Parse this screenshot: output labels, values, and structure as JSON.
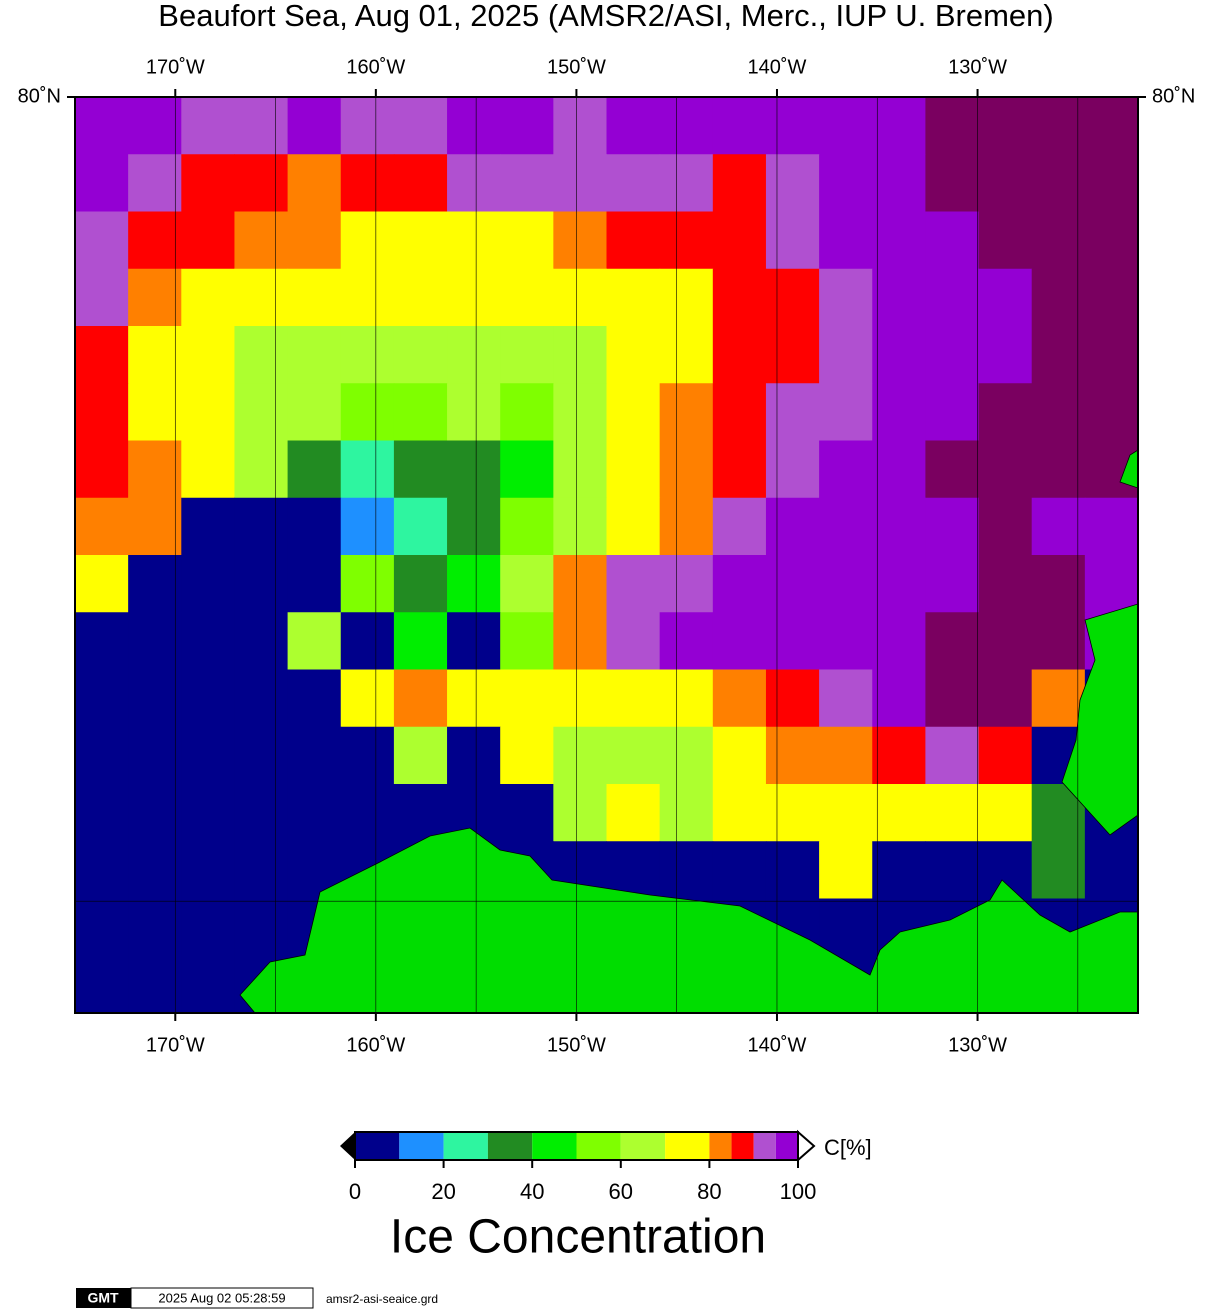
{
  "chart_data": {
    "type": "heatmap",
    "title": "Beaufort Sea, Aug 01, 2025 (AMSR2/ASI, Merc., IUP U. Bremen)",
    "xlim": [
      -175,
      -122
    ],
    "ylim": [
      68,
      80
    ],
    "xticks": [
      {
        "value": -170,
        "label": "170˚W"
      },
      {
        "value": -165,
        "label": null
      },
      {
        "value": -160,
        "label": "160˚W"
      },
      {
        "value": -155,
        "label": null
      },
      {
        "value": -150,
        "label": "150˚W"
      },
      {
        "value": -145,
        "label": null
      },
      {
        "value": -140,
        "label": "140˚W"
      },
      {
        "value": -135,
        "label": null
      },
      {
        "value": -130,
        "label": "130˚W"
      },
      {
        "value": -125,
        "label": null
      }
    ],
    "yticks": [
      {
        "value": 80,
        "label": "80˚N"
      },
      {
        "value": 70,
        "label": null
      }
    ],
    "values": [
      [
        95,
        95,
        90,
        90,
        95,
        90,
        90,
        95,
        95,
        90,
        95,
        95,
        95,
        95,
        95,
        95,
        100,
        100,
        100,
        100
      ],
      [
        95,
        90,
        85,
        85,
        80,
        85,
        85,
        90,
        90,
        90,
        90,
        90,
        85,
        90,
        95,
        95,
        100,
        100,
        100,
        100
      ],
      [
        90,
        85,
        85,
        80,
        80,
        75,
        75,
        75,
        75,
        80,
        85,
        85,
        85,
        90,
        95,
        95,
        95,
        100,
        100,
        100
      ],
      [
        90,
        80,
        70,
        70,
        70,
        75,
        75,
        70,
        70,
        70,
        75,
        75,
        85,
        85,
        90,
        95,
        95,
        95,
        100,
        100
      ],
      [
        85,
        75,
        70,
        65,
        65,
        65,
        65,
        65,
        65,
        65,
        70,
        75,
        85,
        85,
        90,
        95,
        95,
        95,
        100,
        100
      ],
      [
        85,
        75,
        70,
        65,
        60,
        55,
        55,
        60,
        55,
        60,
        70,
        80,
        85,
        90,
        90,
        95,
        95,
        100,
        100,
        100
      ],
      [
        85,
        80,
        70,
        60,
        35,
        25,
        35,
        35,
        45,
        60,
        70,
        80,
        85,
        90,
        95,
        95,
        100,
        100,
        100,
        100
      ],
      [
        80,
        80,
        0,
        0,
        0,
        10,
        25,
        35,
        50,
        65,
        75,
        80,
        90,
        95,
        95,
        95,
        95,
        100,
        95,
        95
      ],
      [
        75,
        0,
        0,
        0,
        0,
        50,
        30,
        40,
        65,
        80,
        90,
        90,
        95,
        95,
        95,
        95,
        95,
        100,
        100,
        95
      ],
      [
        0,
        0,
        0,
        0,
        65,
        0,
        45,
        0,
        50,
        80,
        90,
        95,
        95,
        95,
        95,
        95,
        100,
        100,
        100,
        95
      ],
      [
        0,
        0,
        0,
        0,
        0,
        70,
        80,
        70,
        75,
        70,
        75,
        75,
        80,
        85,
        90,
        95,
        100,
        100,
        80,
        0
      ],
      [
        0,
        0,
        0,
        0,
        0,
        0,
        65,
        0,
        70,
        65,
        65,
        65,
        70,
        80,
        80,
        85,
        90,
        85,
        0,
        0
      ],
      [
        0,
        0,
        0,
        0,
        0,
        0,
        0,
        0,
        0,
        65,
        70,
        65,
        70,
        75,
        75,
        75,
        70,
        70,
        30,
        0
      ],
      [
        0,
        0,
        0,
        0,
        0,
        0,
        0,
        0,
        0,
        0,
        0,
        0,
        0,
        0,
        75,
        0,
        0,
        0,
        30,
        0
      ],
      [
        0,
        0,
        0,
        0,
        0,
        0,
        0,
        0,
        0,
        0,
        0,
        0,
        0,
        0,
        0,
        0,
        0,
        0,
        0,
        0
      ],
      [
        0,
        0,
        0,
        0,
        0,
        0,
        0,
        0,
        0,
        0,
        0,
        0,
        0,
        0,
        0,
        0,
        0,
        0,
        0,
        0
      ]
    ],
    "colorbar": {
      "bounds": [
        0,
        10,
        20,
        30,
        40,
        50,
        60,
        70,
        80,
        85,
        90,
        95,
        100
      ],
      "colors": [
        "#00008b",
        "#1e90ff",
        "#2ef5a0",
        "#228b22",
        "#00ee00",
        "#7fff00",
        "#adff2f",
        "#ffff00",
        "#ff8000",
        "#ff0000",
        "#b050d0",
        "#9400d3"
      ],
      "over_color": "#7a0060",
      "ticks": [
        0,
        20,
        40,
        60,
        80,
        100
      ],
      "label": "C[%]",
      "title": "Ice Concentration"
    }
  },
  "footer": {
    "logo": "GMT",
    "timestamp": "2025 Aug 02 05:28:59",
    "file": "amsr2-asi-seaice.grd"
  }
}
